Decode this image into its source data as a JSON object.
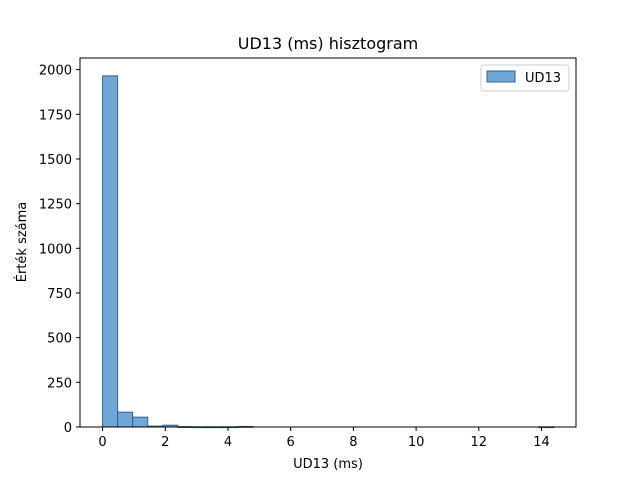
{
  "chart_data": {
    "type": "bar",
    "title": "UD13 (ms) hisztogram",
    "xlabel": "UD13 (ms)",
    "ylabel": "Érték száma",
    "xlim": [
      -0.72,
      15.1
    ],
    "ylim": [
      0,
      2065
    ],
    "xticks": [
      0,
      2,
      4,
      6,
      8,
      10,
      12,
      14
    ],
    "yticks": [
      0,
      250,
      500,
      750,
      1000,
      1250,
      1500,
      1750,
      2000
    ],
    "legend": {
      "position": "top-right",
      "entries": [
        "UD13"
      ]
    },
    "grid": false,
    "series": [
      {
        "name": "UD13",
        "color": "#6fa8d6",
        "edgecolor": "#3a5f8f",
        "bin_edges": [
          0.0,
          0.48,
          0.96,
          1.44,
          1.92,
          2.4,
          2.88,
          3.36,
          3.84,
          4.32,
          4.8,
          5.28,
          5.76,
          6.24,
          6.72,
          7.2,
          7.68,
          8.16,
          8.64,
          9.12,
          9.6,
          10.08,
          10.56,
          11.04,
          11.52,
          12.0,
          12.48,
          12.96,
          13.44,
          13.92,
          14.4
        ],
        "counts": [
          1965,
          83,
          55,
          5,
          10,
          2,
          1,
          1,
          1,
          3,
          0,
          0,
          0,
          0,
          0,
          0,
          0,
          0,
          0,
          0,
          0,
          0,
          0,
          0,
          0,
          0,
          0,
          0,
          0,
          1
        ]
      }
    ]
  }
}
